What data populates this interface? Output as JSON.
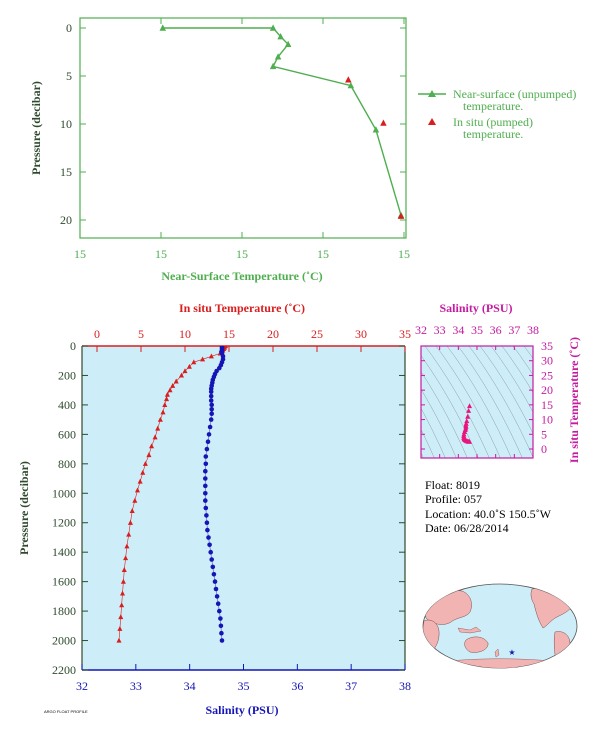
{
  "chart_data": [
    {
      "type": "line",
      "panel": "near-surface",
      "xlabel": "Near-Surface Temperature (˚C)",
      "ylabel": "Pressure (decibar)",
      "x_tick_labels": [
        "15",
        "15",
        "15",
        "15",
        "15"
      ],
      "y_ticks": [
        0,
        5,
        10,
        15,
        20
      ],
      "ylim": [
        0,
        22
      ],
      "y_inverted": true,
      "series": [
        {
          "name": "Near-surface (unpumped)\ntemperature.",
          "marker": "triangle",
          "color": "#4fae4f",
          "points": [
            [
              14.33,
              0.0
            ],
            [
              14.77,
              0.0
            ],
            [
              14.8,
              0.9
            ],
            [
              14.83,
              1.7
            ],
            [
              14.79,
              3.0
            ],
            [
              14.77,
              4.0
            ],
            [
              15.08,
              6.0
            ],
            [
              15.18,
              10.6
            ],
            [
              15.28,
              19.5
            ]
          ]
        },
        {
          "name": "In situ (pumped)\ntemperature.",
          "marker": "triangle",
          "color": "#d81e1e",
          "points": [
            [
              15.07,
              5.4
            ],
            [
              15.21,
              9.9
            ],
            [
              15.28,
              19.6
            ]
          ]
        }
      ],
      "legend_position": "right"
    },
    {
      "type": "line",
      "panel": "profile",
      "ylabel": "Pressure (decibar)",
      "ylim": [
        0,
        2200
      ],
      "y_ticks": [
        0,
        200,
        400,
        600,
        800,
        1000,
        1200,
        1400,
        1600,
        1800,
        2000,
        2200
      ],
      "y_inverted": true,
      "top_axis": {
        "label": "In situ Temperature (˚C)",
        "ticks": [
          0,
          5,
          10,
          15,
          20,
          25,
          30,
          35
        ],
        "range": [
          -2,
          35
        ]
      },
      "bottom_axis": {
        "label": "Salinity (PSU)",
        "ticks": [
          32,
          33,
          34,
          35,
          36,
          37,
          38
        ],
        "range": [
          32,
          38
        ]
      },
      "series": [
        {
          "name": "In situ Temperature (˚C)",
          "marker": "triangle",
          "color": "#d81e1e",
          "points": [
            [
              14.6,
              0
            ],
            [
              14.5,
              10
            ],
            [
              14.4,
              20
            ],
            [
              14.3,
              30
            ],
            [
              14.0,
              50
            ],
            [
              13.0,
              70
            ],
            [
              12.0,
              90
            ],
            [
              11.0,
              110
            ],
            [
              10.5,
              140
            ],
            [
              10.0,
              170
            ],
            [
              9.6,
              200
            ],
            [
              9.0,
              240
            ],
            [
              8.6,
              270
            ],
            [
              8.3,
              300
            ],
            [
              8.0,
              330
            ],
            [
              7.9,
              360
            ],
            [
              7.7,
              400
            ],
            [
              7.5,
              450
            ],
            [
              7.2,
              500
            ],
            [
              6.9,
              560
            ],
            [
              6.6,
              620
            ],
            [
              6.2,
              680
            ],
            [
              5.9,
              740
            ],
            [
              5.5,
              800
            ],
            [
              5.2,
              860
            ],
            [
              4.9,
              920
            ],
            [
              4.6,
              980
            ],
            [
              4.3,
              1050
            ],
            [
              4.0,
              1120
            ],
            [
              3.8,
              1200
            ],
            [
              3.6,
              1280
            ],
            [
              3.4,
              1360
            ],
            [
              3.25,
              1440
            ],
            [
              3.1,
              1520
            ],
            [
              3.0,
              1600
            ],
            [
              2.9,
              1680
            ],
            [
              2.8,
              1760
            ],
            [
              2.7,
              1840
            ],
            [
              2.6,
              1920
            ],
            [
              2.5,
              2000
            ]
          ]
        },
        {
          "name": "Salinity (PSU)",
          "marker": "circle",
          "color": "#1515b5",
          "points": [
            [
              34.6,
              0
            ],
            [
              34.6,
              10
            ],
            [
              34.6,
              20
            ],
            [
              34.6,
              30
            ],
            [
              34.59,
              40
            ],
            [
              34.6,
              50
            ],
            [
              34.62,
              70
            ],
            [
              34.62,
              90
            ],
            [
              34.6,
              110
            ],
            [
              34.58,
              130
            ],
            [
              34.55,
              150
            ],
            [
              34.5,
              170
            ],
            [
              34.47,
              190
            ],
            [
              34.45,
              210
            ],
            [
              34.43,
              230
            ],
            [
              34.42,
              250
            ],
            [
              34.41,
              270
            ],
            [
              34.4,
              290
            ],
            [
              34.4,
              310
            ],
            [
              34.4,
              340
            ],
            [
              34.4,
              370
            ],
            [
              34.41,
              400
            ],
            [
              34.41,
              430
            ],
            [
              34.41,
              460
            ],
            [
              34.4,
              500
            ],
            [
              34.38,
              550
            ],
            [
              34.36,
              600
            ],
            [
              34.34,
              650
            ],
            [
              34.32,
              700
            ],
            [
              34.3,
              750
            ],
            [
              34.3,
              800
            ],
            [
              34.29,
              850
            ],
            [
              34.29,
              900
            ],
            [
              34.29,
              950
            ],
            [
              34.29,
              1000
            ],
            [
              34.29,
              1050
            ],
            [
              34.3,
              1100
            ],
            [
              34.31,
              1150
            ],
            [
              34.32,
              1200
            ],
            [
              34.33,
              1250
            ],
            [
              34.35,
              1300
            ],
            [
              34.37,
              1350
            ],
            [
              34.39,
              1400
            ],
            [
              34.41,
              1450
            ],
            [
              34.43,
              1500
            ],
            [
              34.45,
              1550
            ],
            [
              34.47,
              1600
            ],
            [
              34.49,
              1650
            ],
            [
              34.51,
              1700
            ],
            [
              34.53,
              1750
            ],
            [
              34.55,
              1800
            ],
            [
              34.57,
              1850
            ],
            [
              34.58,
              1900
            ],
            [
              34.59,
              1950
            ],
            [
              34.6,
              2000
            ]
          ]
        }
      ]
    },
    {
      "type": "scatter",
      "panel": "T-S diagram",
      "xlabel": "Salinity (PSU)",
      "ylabel": "In situ Temperature (˚C)",
      "x_ticks": [
        32,
        33,
        34,
        35,
        36,
        37,
        38
      ],
      "y_ticks": [
        0,
        5,
        10,
        15,
        20,
        25,
        30,
        35
      ],
      "xlim": [
        32,
        38
      ],
      "ylim": [
        -2,
        35
      ],
      "color": "#e8157f",
      "points": [
        [
          34.6,
          14.6
        ],
        [
          34.55,
          13.0
        ],
        [
          34.5,
          11.0
        ],
        [
          34.45,
          9.5
        ],
        [
          34.42,
          8.6
        ],
        [
          34.4,
          8.0
        ],
        [
          34.41,
          7.6
        ],
        [
          34.4,
          7.0
        ],
        [
          34.37,
          6.5
        ],
        [
          34.33,
          5.8
        ],
        [
          34.3,
          5.0
        ],
        [
          34.29,
          4.4
        ],
        [
          34.29,
          3.8
        ],
        [
          34.31,
          3.4
        ],
        [
          34.35,
          3.1
        ],
        [
          34.4,
          2.9
        ],
        [
          34.45,
          2.7
        ],
        [
          34.5,
          2.6
        ],
        [
          34.55,
          2.5
        ],
        [
          34.6,
          2.5
        ]
      ]
    }
  ],
  "info": {
    "float": "Float:  8019",
    "profile": "Profile:  057",
    "location": "Location:  40.0˚S   150.5˚W",
    "date": "Date:  06/28/2014"
  },
  "footer_note": "ARGO FLOAT PROFILE",
  "map": {
    "marker": "star"
  }
}
